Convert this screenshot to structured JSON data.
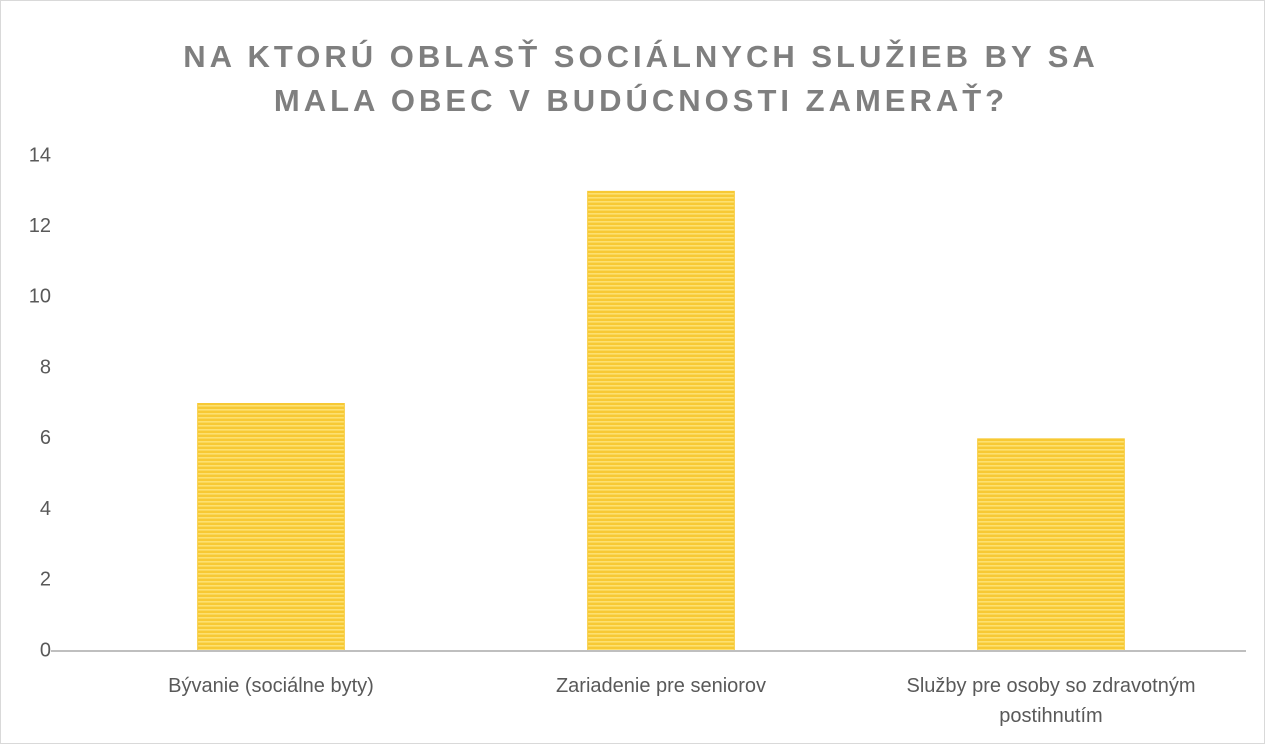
{
  "chart_data": {
    "type": "bar",
    "title": "NA KTORÚ OBLASŤ SOCIÁLNYCH SLUŽIEB BY SA MALA OBEC V BUDÚCNOSTI ZAMERAŤ?",
    "categories": [
      "Bývanie (sociálne byty)",
      "Zariadenie pre seniorov",
      "Služby pre osoby so zdravotným postihnutím"
    ],
    "values": [
      7,
      13,
      6
    ],
    "color": "#f7c934",
    "ylim": [
      0,
      14
    ],
    "yticks": [
      0,
      2,
      4,
      6,
      8,
      10,
      12,
      14
    ],
    "grid": false
  }
}
